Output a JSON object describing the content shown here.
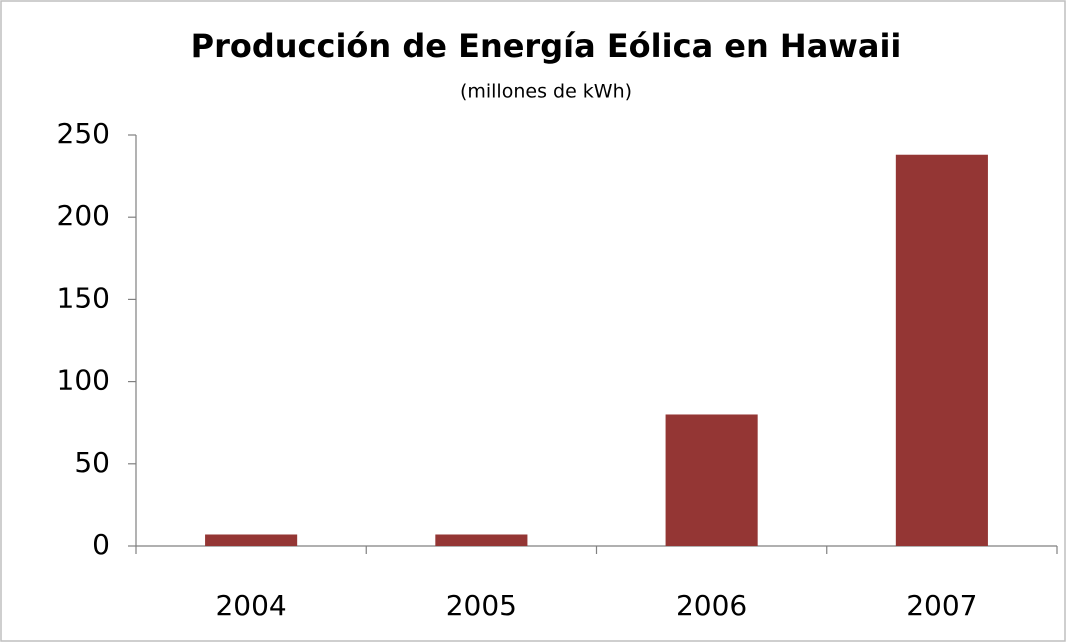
{
  "chart_data": {
    "type": "bar",
    "title": "Producción de Energía Eólica en Hawaii",
    "subtitle": "(millones de kWh)",
    "categories": [
      "2004",
      "2005",
      "2006",
      "2007"
    ],
    "values": [
      7,
      7,
      80,
      238
    ],
    "color": "#943634",
    "ylim": [
      0,
      250
    ],
    "yticks": [
      0,
      50,
      100,
      150,
      200,
      250
    ],
    "grid": false
  }
}
